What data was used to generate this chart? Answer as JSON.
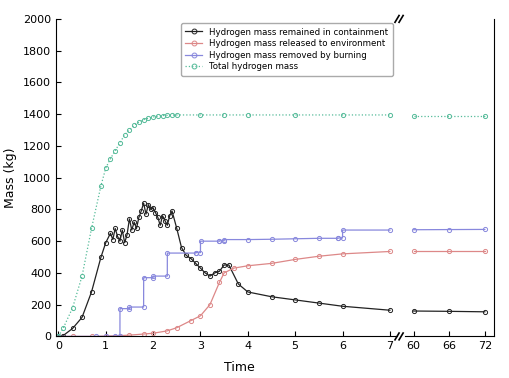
{
  "title": "",
  "xlabel": "Time",
  "ylabel": "Mass (kg)",
  "ylim": [
    0,
    2000
  ],
  "yticks": [
    0,
    200,
    400,
    600,
    800,
    1000,
    1200,
    1400,
    1600,
    1800,
    2000
  ],
  "xticks_left": [
    0,
    1,
    2,
    3,
    4,
    5,
    6,
    7
  ],
  "xticks_right": [
    60,
    66,
    72
  ],
  "colors": {
    "remained": "#222222",
    "released": "#dd8888",
    "burning": "#8888dd",
    "total": "#55bb99"
  },
  "legend_labels": [
    "Hydrogen mass remained in containment",
    "Hydrogen mass released to environment",
    "Hydrogen mass removed by burning",
    "Total hydrogen mass"
  ],
  "remained": {
    "x": [
      0,
      0.1,
      0.3,
      0.5,
      0.7,
      0.9,
      1.0,
      1.1,
      1.15,
      1.2,
      1.25,
      1.3,
      1.35,
      1.4,
      1.45,
      1.5,
      1.55,
      1.6,
      1.65,
      1.7,
      1.75,
      1.8,
      1.85,
      1.9,
      1.95,
      2.0,
      2.05,
      2.1,
      2.15,
      2.2,
      2.25,
      2.3,
      2.35,
      2.4,
      2.5,
      2.6,
      2.7,
      2.8,
      2.9,
      3.0,
      3.1,
      3.2,
      3.3,
      3.4,
      3.5,
      3.6,
      3.8,
      4.0,
      4.5,
      5.0,
      5.5,
      6.0,
      7.0,
      60.0,
      66.0,
      72.0
    ],
    "y": [
      0,
      5,
      50,
      120,
      280,
      500,
      590,
      650,
      610,
      680,
      630,
      600,
      670,
      590,
      640,
      740,
      670,
      720,
      680,
      750,
      790,
      840,
      770,
      830,
      800,
      810,
      780,
      750,
      700,
      760,
      730,
      700,
      760,
      790,
      680,
      560,
      510,
      490,
      460,
      430,
      400,
      380,
      400,
      410,
      450,
      450,
      330,
      280,
      250,
      230,
      210,
      190,
      165,
      160,
      158,
      155
    ]
  },
  "released": {
    "x": [
      0,
      0.3,
      0.7,
      1.0,
      1.3,
      1.5,
      1.8,
      2.0,
      2.3,
      2.5,
      2.8,
      3.0,
      3.2,
      3.4,
      3.5,
      3.7,
      4.0,
      4.5,
      5.0,
      5.5,
      6.0,
      7.0,
      60.0,
      66.0,
      72.0
    ],
    "y": [
      0,
      0,
      0,
      2,
      5,
      8,
      15,
      20,
      35,
      55,
      100,
      130,
      200,
      340,
      400,
      430,
      445,
      460,
      485,
      505,
      520,
      535,
      535,
      535,
      535
    ]
  },
  "burning": {
    "x": [
      0,
      0.8,
      1.0,
      1.2,
      1.3,
      1.301,
      1.5,
      1.501,
      1.8,
      1.801,
      2.0,
      2.001,
      2.3,
      2.301,
      2.9,
      2.901,
      3.0,
      3.001,
      3.4,
      3.401,
      3.5,
      3.501,
      4.0,
      4.5,
      5.0,
      5.5,
      5.9,
      5.901,
      6.0,
      6.001,
      7.0,
      60.0,
      66.0,
      72.0
    ],
    "y": [
      0,
      0,
      0,
      0,
      0,
      175,
      175,
      185,
      185,
      370,
      370,
      380,
      380,
      525,
      525,
      528,
      528,
      600,
      600,
      602,
      602,
      610,
      610,
      612,
      615,
      618,
      618,
      620,
      620,
      670,
      670,
      672,
      673,
      674
    ]
  },
  "total": {
    "x": [
      0,
      0.1,
      0.3,
      0.5,
      0.7,
      0.9,
      1.0,
      1.1,
      1.2,
      1.3,
      1.4,
      1.5,
      1.6,
      1.7,
      1.8,
      1.9,
      2.0,
      2.1,
      2.2,
      2.3,
      2.4,
      2.5,
      3.0,
      3.5,
      4.0,
      5.0,
      6.0,
      7.0,
      60.0,
      66.0,
      72.0
    ],
    "y": [
      0,
      50,
      180,
      380,
      680,
      950,
      1060,
      1120,
      1170,
      1220,
      1270,
      1300,
      1330,
      1350,
      1365,
      1375,
      1382,
      1388,
      1391,
      1393,
      1394,
      1395,
      1395,
      1395,
      1395,
      1395,
      1395,
      1395,
      1390,
      1390,
      1390
    ]
  }
}
